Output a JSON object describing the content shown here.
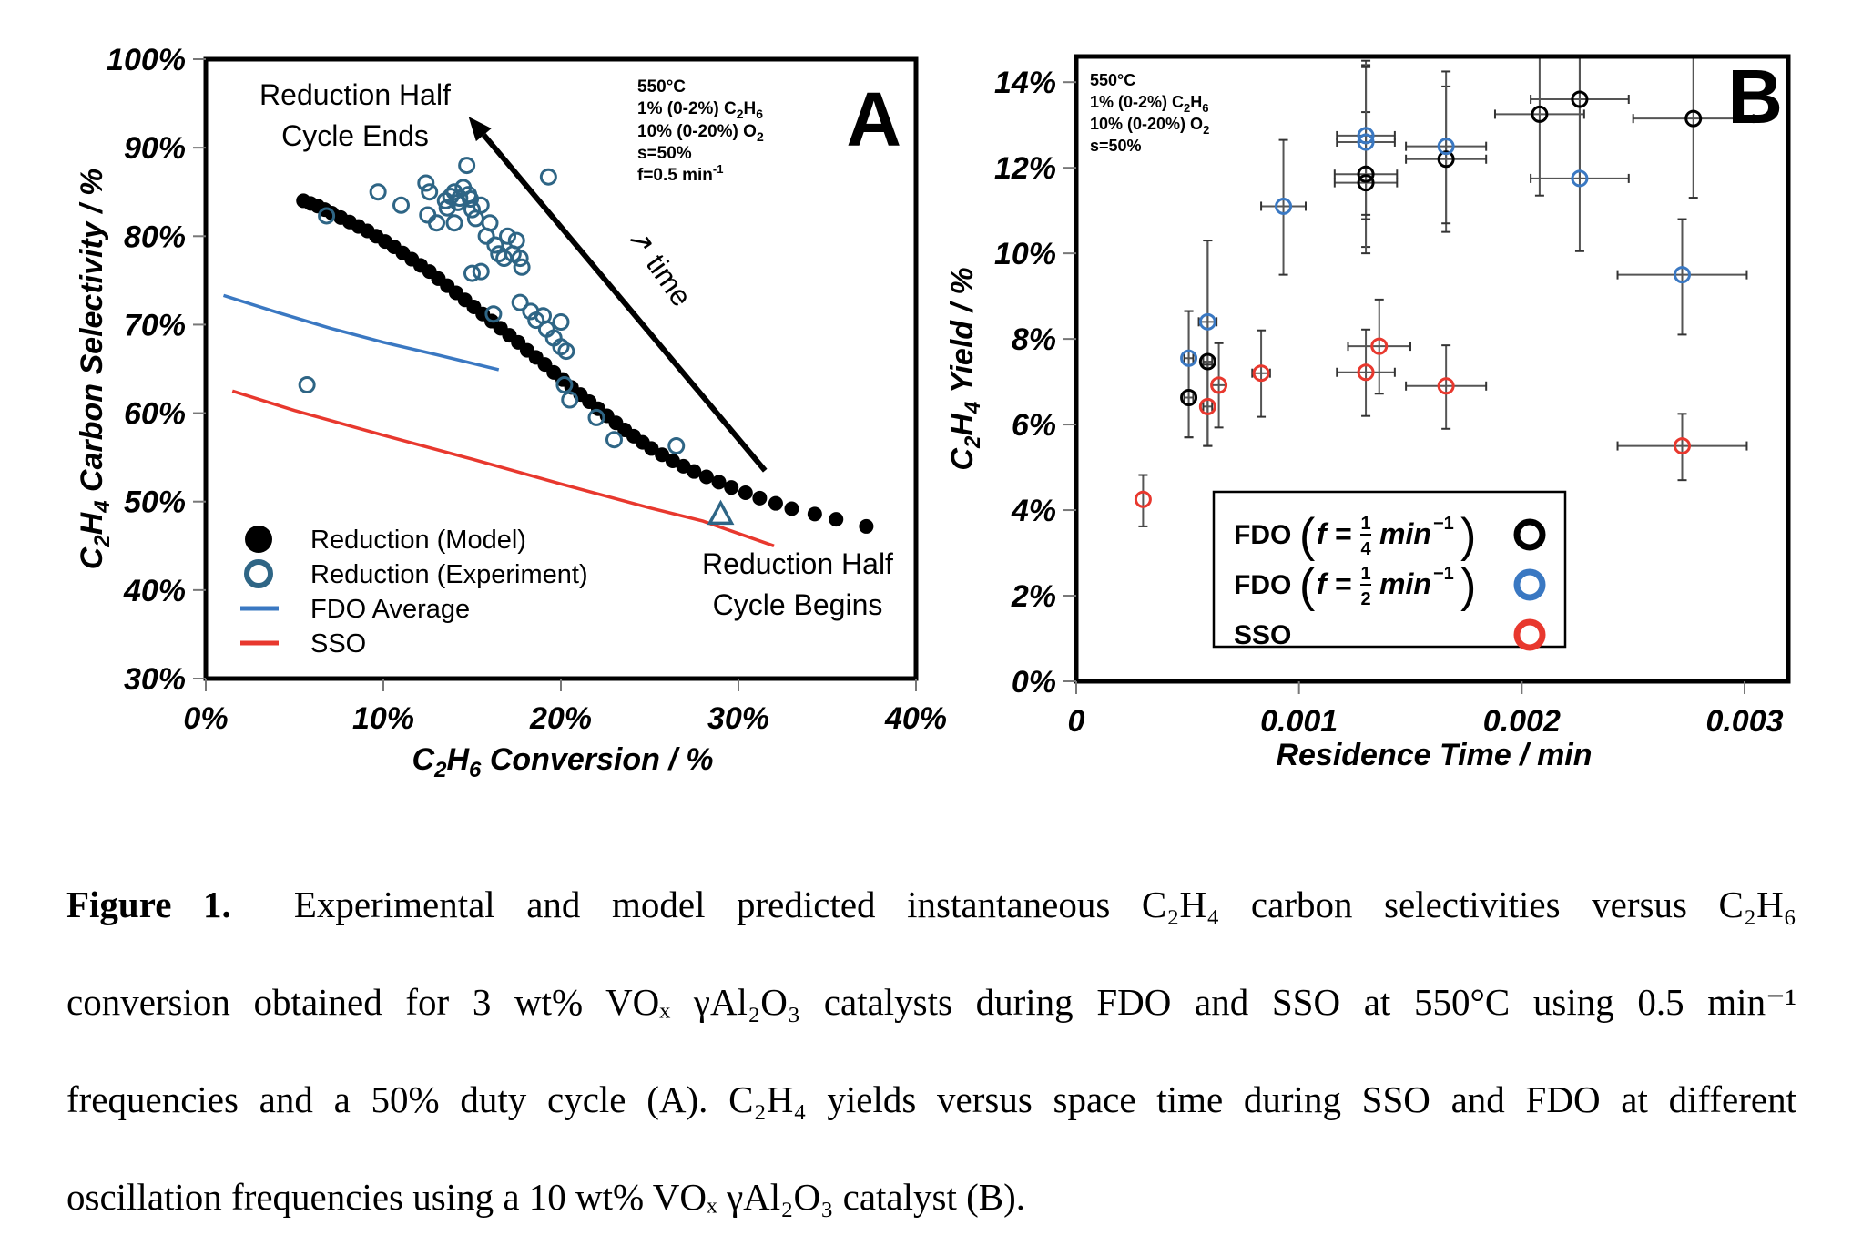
{
  "chart_data": [
    {
      "panel": "A",
      "type": "scatter",
      "title": "",
      "panel_label": "A",
      "xlabel": "C2H6 Conversion / %",
      "ylabel": "C2H4 Carbon Selectivity / %",
      "xlim": [
        0,
        40
      ],
      "ylim": [
        30,
        100
      ],
      "xticks": [
        0,
        10,
        20,
        30,
        40
      ],
      "xtick_labels": [
        "0%",
        "10%",
        "20%",
        "30%",
        "40%"
      ],
      "yticks": [
        30,
        40,
        50,
        60,
        70,
        80,
        90,
        100
      ],
      "ytick_labels": [
        "30%",
        "40%",
        "50%",
        "60%",
        "70%",
        "80%",
        "90%",
        "100%"
      ],
      "grid": false,
      "conditions": [
        "550°C",
        "1% (0-2%) C2H6",
        "10% (0-20%) O2",
        "s=50%",
        "f=0.5 min-1"
      ],
      "annotations": {
        "end_line1": "Reduction Half",
        "end_line2": "Cycle Ends",
        "begin_line1": "Reduction Half",
        "begin_line2": "Cycle Begins",
        "time": "↗ time",
        "arrow": {
          "from": [
            31.5,
            53.5
          ],
          "to": [
            14.8,
            93.5
          ]
        }
      },
      "legend_position": "bottom-left",
      "series": [
        {
          "name": "Reduction (Model)",
          "kind": "filled-circle",
          "color": "#000000",
          "x": [
            5.5,
            5.9,
            6.3,
            6.7,
            7.1,
            7.6,
            8.1,
            8.6,
            9.1,
            9.6,
            10.1,
            10.6,
            11.1,
            11.6,
            12.1,
            12.6,
            13.1,
            13.6,
            14.1,
            14.6,
            15.1,
            15.6,
            16.1,
            16.6,
            17.1,
            17.6,
            18.1,
            18.6,
            19.1,
            19.6,
            20.1,
            20.6,
            21.1,
            21.6,
            22.1,
            22.6,
            23.1,
            23.6,
            24.1,
            24.6,
            25.1,
            25.7,
            26.3,
            26.9,
            27.5,
            28.2,
            28.9,
            29.6,
            30.4,
            31.2,
            32.1,
            33.0,
            34.3,
            35.5,
            37.2
          ],
          "y": [
            84.0,
            83.7,
            83.4,
            83.0,
            82.6,
            82.1,
            81.6,
            81.1,
            80.6,
            80.0,
            79.4,
            78.8,
            78.1,
            77.4,
            76.7,
            76.0,
            75.2,
            74.4,
            73.6,
            72.8,
            72.0,
            71.2,
            70.4,
            69.6,
            68.8,
            68.0,
            67.1,
            66.3,
            65.5,
            64.6,
            63.8,
            62.9,
            62.1,
            61.3,
            60.5,
            59.7,
            58.9,
            58.1,
            57.4,
            56.7,
            56.0,
            55.3,
            54.6,
            54.0,
            53.4,
            52.8,
            52.2,
            51.6,
            51.0,
            50.4,
            49.8,
            49.2,
            48.6,
            48.0,
            47.2
          ]
        },
        {
          "name": "Reduction (Experiment)",
          "kind": "open-circle",
          "color": "#2e6585",
          "x": [
            6.8,
            5.7,
            9.7,
            11.0,
            12.4,
            12.6,
            12.5,
            13.0,
            13.5,
            13.8,
            14.0,
            14.3,
            14.5,
            14.7,
            14.8,
            15.0,
            15.2,
            15.5,
            15.8,
            16.0,
            16.3,
            16.5,
            16.8,
            17.0,
            17.3,
            17.5,
            17.7,
            15.0,
            15.5,
            16.2,
            17.8,
            19.3,
            17.7,
            18.3,
            18.6,
            19.0,
            19.2,
            19.6,
            20.0,
            20.0,
            20.3,
            20.2,
            20.5,
            22.0,
            23.0,
            26.5,
            14.0,
            13.6,
            14.2,
            14.9
          ],
          "y": [
            82.3,
            63.2,
            85.0,
            83.5,
            86.0,
            85.0,
            82.4,
            81.5,
            84.0,
            84.5,
            85.0,
            84.3,
            85.5,
            88.0,
            84.7,
            83.0,
            82.0,
            83.5,
            80.0,
            81.5,
            79.0,
            78.0,
            77.5,
            80.0,
            78.0,
            79.5,
            77.5,
            75.8,
            76.0,
            71.2,
            76.5,
            86.7,
            72.5,
            71.5,
            70.5,
            71.0,
            69.5,
            68.5,
            67.5,
            70.3,
            67.0,
            63.2,
            61.5,
            59.5,
            57.0,
            56.3,
            81.5,
            83.2,
            83.8,
            84.2
          ]
        },
        {
          "name": "Reduction (Experiment) start",
          "kind": "open-triangle",
          "color": "#2e6585",
          "x": [
            29.0
          ],
          "y": [
            48.6
          ]
        },
        {
          "name": "FDO Average",
          "kind": "line",
          "color": "#3a78c2",
          "x": [
            1.0,
            4.0,
            7.0,
            10.0,
            13.0,
            16.5
          ],
          "y": [
            73.3,
            71.4,
            69.6,
            68.0,
            66.6,
            64.9
          ]
        },
        {
          "name": "SSO",
          "kind": "line",
          "color": "#e8382e",
          "x": [
            1.5,
            5.0,
            10.0,
            15.0,
            20.0,
            25.0,
            28.0,
            32.0
          ],
          "y": [
            62.5,
            60.3,
            57.5,
            54.8,
            52.0,
            49.3,
            47.8,
            45.0
          ]
        }
      ]
    },
    {
      "panel": "B",
      "type": "scatter",
      "title": "",
      "panel_label": "B",
      "xlabel": "Residence Time / min",
      "ylabel": "C2H4 Yield / %",
      "xlim": [
        0,
        0.00318
      ],
      "ylim": [
        0,
        14.6
      ],
      "xticks": [
        0,
        0.001,
        0.002,
        0.003
      ],
      "xtick_labels": [
        "0",
        "0.001",
        "0.002",
        "0.003"
      ],
      "yticks": [
        0,
        2,
        4,
        6,
        8,
        10,
        12,
        14
      ],
      "ytick_labels": [
        "0%",
        "2%",
        "4%",
        "6%",
        "8%",
        "10%",
        "12%",
        "14%"
      ],
      "grid": false,
      "conditions": [
        "550°C",
        "1% (0-2%) C2H6",
        "10% (0-20%) O2",
        "s=50%"
      ],
      "legend_position": "bottom-center",
      "series": [
        {
          "name": "FDO (f = 1/4 min-1)",
          "legend_prefix": "FDO",
          "legend_math": "f = 1/4 min⁻¹",
          "frac_num": "1",
          "frac_den": "4",
          "color": "#000000",
          "points": [
            {
              "x": 0.000505,
              "y": 6.63,
              "xerr": 2e-05,
              "ylo": 5.7,
              "yhi": 8.65
            },
            {
              "x": 0.00059,
              "y": 7.47,
              "xerr": 2e-05,
              "ylo": 5.5,
              "yhi": 10.3
            },
            {
              "x": 0.0013,
              "y": 11.85,
              "xerr": 0.00014,
              "ylo": 10.15,
              "yhi": 14.4
            },
            {
              "x": 0.0013,
              "y": 11.65,
              "xerr": 0.00014,
              "ylo": 10.0,
              "yhi": 13.3
            },
            {
              "x": 0.00166,
              "y": 12.2,
              "xerr": 0.00018,
              "ylo": 10.5,
              "yhi": 13.9
            },
            {
              "x": 0.00208,
              "y": 13.25,
              "xerr": 0.0002,
              "ylo": 11.35,
              "yhi": 14.6
            },
            {
              "x": 0.00226,
              "y": 13.6,
              "xerr": 0.00022,
              "ylo": 11.75,
              "yhi": 14.6
            },
            {
              "x": 0.00277,
              "y": 13.15,
              "xerr": 0.00027,
              "ylo": 11.3,
              "yhi": 14.6
            }
          ]
        },
        {
          "name": "FDO (f = 1/2 min-1)",
          "legend_prefix": "FDO",
          "legend_math": "f = 1/2 min⁻¹",
          "frac_num": "1",
          "frac_den": "2",
          "color": "#3a78c2",
          "points": [
            {
              "x": 0.000505,
              "y": 7.55,
              "xerr": 2e-05,
              "ylo": 5.7,
              "yhi": 8.65
            },
            {
              "x": 0.00059,
              "y": 8.4,
              "xerr": 4e-05,
              "ylo": 5.5,
              "yhi": 10.3
            },
            {
              "x": 0.00093,
              "y": 11.1,
              "xerr": 0.0001,
              "ylo": 9.5,
              "yhi": 12.65
            },
            {
              "x": 0.0013,
              "y": 12.75,
              "xerr": 0.00013,
              "ylo": 10.8,
              "yhi": 14.5
            },
            {
              "x": 0.0013,
              "y": 12.6,
              "xerr": 0.00013,
              "ylo": 10.9,
              "yhi": 14.35
            },
            {
              "x": 0.00166,
              "y": 12.5,
              "xerr": 0.00018,
              "ylo": 10.7,
              "yhi": 14.25
            },
            {
              "x": 0.00226,
              "y": 11.75,
              "xerr": 0.00022,
              "ylo": 10.05,
              "yhi": 14.6
            },
            {
              "x": 0.00272,
              "y": 9.5,
              "xerr": 0.00029,
              "ylo": 8.1,
              "yhi": 10.8
            }
          ]
        },
        {
          "name": "SSO",
          "legend_prefix": "SSO",
          "legend_math": "",
          "color": "#e8382e",
          "points": [
            {
              "x": 0.0003,
              "y": 4.25,
              "xerr": 0.0,
              "ylo": 3.62,
              "yhi": 4.82
            },
            {
              "x": 0.00059,
              "y": 6.42,
              "xerr": 2e-05,
              "ylo": 5.5,
              "yhi": 7.4
            },
            {
              "x": 0.00064,
              "y": 6.92,
              "xerr": 3e-05,
              "ylo": 5.93,
              "yhi": 7.9
            },
            {
              "x": 0.00083,
              "y": 7.2,
              "xerr": 4e-05,
              "ylo": 6.18,
              "yhi": 8.2
            },
            {
              "x": 0.0013,
              "y": 7.22,
              "xerr": 0.00013,
              "ylo": 6.2,
              "yhi": 8.22
            },
            {
              "x": 0.00136,
              "y": 7.83,
              "xerr": 0.00014,
              "ylo": 6.72,
              "yhi": 8.92
            },
            {
              "x": 0.00166,
              "y": 6.9,
              "xerr": 0.00018,
              "ylo": 5.9,
              "yhi": 7.85
            },
            {
              "x": 0.00272,
              "y": 5.5,
              "xerr": 0.00029,
              "ylo": 4.7,
              "yhi": 6.25
            }
          ]
        }
      ]
    }
  ],
  "caption": {
    "label": "Figure 1.",
    "lines": [
      "Experimental and model predicted instantaneous C₂H₄ carbon selectivities versus C₂H₆",
      "conversion obtained for 3 wt% VOₓ γAl₂O₃ catalysts during FDO and SSO at 550°C using 0.5 min⁻¹",
      "frequencies and a 50% duty cycle (A). C₂H₄ yields versus space time during SSO and FDO at different",
      "oscillation frequencies using a 10 wt% VOₓ γAl₂O₃ catalyst (B)."
    ]
  }
}
